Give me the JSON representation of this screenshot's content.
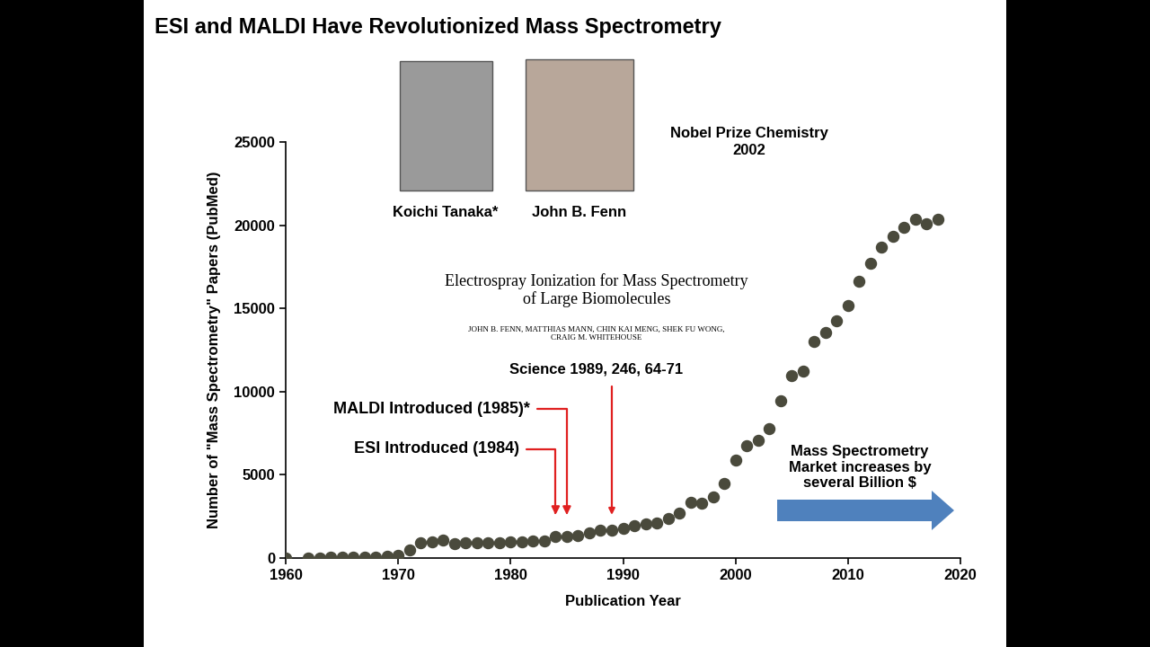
{
  "chart_data": {
    "type": "scatter",
    "title": "ESI and MALDI Have Revolutionized Mass Spectrometry",
    "x_label": "Publication Year",
    "y_label": "Number of \"Mass Spectrometry\" Papers (PubMed)",
    "x": [
      1960,
      1962,
      1963,
      1964,
      1965,
      1966,
      1967,
      1968,
      1969,
      1970,
      1971,
      1972,
      1973,
      1974,
      1975,
      1976,
      1977,
      1978,
      1979,
      1980,
      1981,
      1982,
      1983,
      1984,
      1985,
      1986,
      1987,
      1988,
      1989,
      1990,
      1991,
      1992,
      1993,
      1994,
      1995,
      1996,
      1997,
      1998,
      1999,
      2000,
      2001,
      2002,
      2003,
      2004,
      2005,
      2006,
      2007,
      2008,
      2009,
      2010,
      2011,
      2012,
      2013,
      2014,
      2015,
      2016,
      2017,
      2018
    ],
    "values": [
      0,
      10,
      20,
      30,
      40,
      50,
      60,
      70,
      100,
      150,
      500,
      900,
      950,
      1100,
      850,
      900,
      900,
      900,
      900,
      950,
      950,
      1000,
      1050,
      1300,
      1300,
      1350,
      1500,
      1650,
      1650,
      1800,
      1950,
      2050,
      2100,
      2400,
      2700,
      3350,
      3300,
      3650,
      4500,
      5900,
      6750,
      7050,
      7750,
      9450,
      10950,
      11250,
      13000,
      13550,
      14250,
      15150,
      16650,
      17700,
      18700,
      19350,
      19850,
      20350,
      20100,
      20350
    ],
    "color": "#4a4a3c",
    "marker": "o",
    "xlim": [
      1960,
      2020
    ],
    "ylim": [
      0,
      25000
    ],
    "xticks": [
      1960,
      1970,
      1980,
      1990,
      2000,
      2010,
      2020
    ],
    "yticks": [
      0,
      5000,
      10000,
      15000,
      20000,
      25000
    ],
    "annotations": [
      {
        "text": "MALDI Introduced (1985)*",
        "x": 1985
      },
      {
        "text": "ESI Introduced (1984)",
        "x": 1984
      },
      {
        "text": "Science 1989, 246, 64-71",
        "x": 1989
      }
    ],
    "photo_captions": [
      "Koichi Tanaka*",
      "John B. Fenn"
    ],
    "nobel": "Nobel Prize Chemistry\n2002",
    "paper_title": "Electrospray Ionization for Mass Spectrometry\nof Large Biomolecules",
    "paper_authors": "JOHN B. FENN, MATTHIAS MANN, CHIN KAI MENG, SHEK FU WONG,\nCRAIG M. WHITEHOUSE",
    "market_note": "Mass Spectrometry\nMarket increases by\nseveral Billion $"
  }
}
